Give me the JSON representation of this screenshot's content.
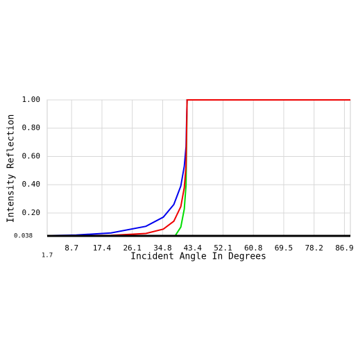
{
  "chart_data": {
    "type": "line",
    "x_label": "Incident Angle In Degrees",
    "y_label": "Intensity Reflection",
    "x": [
      1.7,
      10,
      20,
      30,
      35,
      38,
      40,
      41,
      41.5,
      41.8,
      45,
      60,
      75,
      88.6
    ],
    "series": [
      {
        "color": "#00dd00",
        "values": [
          0.04,
          0.0363,
          0.0244,
          0.0046,
          0.0012,
          0.0243,
          0.1001,
          0.2285,
          0.398,
          1.0,
          1.0,
          1.0,
          1.0,
          1.0
        ]
      },
      {
        "color": "#0000ee",
        "values": [
          0.04,
          0.0439,
          0.059,
          0.1058,
          0.171,
          0.26,
          0.3906,
          0.531,
          0.668,
          1.0,
          1.0,
          1.0,
          1.0,
          1.0
        ]
      },
      {
        "color": "#ee0000",
        "values": [
          0.04,
          0.04,
          0.0417,
          0.0552,
          0.0861,
          0.142,
          0.245,
          0.38,
          0.533,
          1.0,
          1.0,
          1.0,
          1.0,
          1.0
        ]
      }
    ],
    "xlim": [
      1.7,
      88.6
    ],
    "xticks": [
      1.7,
      8.7,
      17.4,
      26.1,
      34.8,
      43.4,
      52.1,
      60.8,
      69.5,
      78.2,
      86.9
    ],
    "ylim": [
      0.038,
      1.0
    ],
    "yticks": [
      0.038,
      {
        "value": 0.2,
        "label": "0.20"
      },
      {
        "value": 0.4,
        "label": "0.40"
      },
      {
        "value": 0.6,
        "label": "0.60"
      },
      {
        "value": 0.8,
        "label": "0.80"
      },
      {
        "value": 1.0,
        "label": "1.00"
      }
    ],
    "grid": true
  }
}
